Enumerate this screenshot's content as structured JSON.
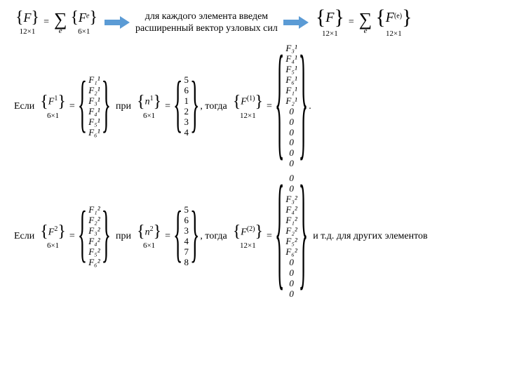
{
  "background_color": "#ffffff",
  "text_color": "#000000",
  "arrow_color": "#5b9bd5",
  "top": {
    "lhs_label": "{F}",
    "lhs_dim": "12×1",
    "eq": "=",
    "sigma_sub": "e",
    "rhs_label": "{F e}",
    "rhs_sup": "e",
    "rhs_dim": "6×1",
    "caption_line1": "для каждого элемента введем",
    "caption_line2": "расширенный вектор узловых сил",
    "far_lhs_label": "{F}",
    "far_lhs_dim": "12×1",
    "far_rhs_sup": "(e)",
    "far_rhs_dim": "12×1"
  },
  "ex1": {
    "prefix": "Если",
    "F_label": "F 1",
    "F_dim": "6×1",
    "F_entries": [
      "F₁¹",
      "F₂¹",
      "F₃¹",
      "F₄¹",
      "F₅¹",
      "F₆¹"
    ],
    "mid": "при",
    "n_label": "n¹",
    "n_dim": "6×1",
    "n_entries": [
      "5",
      "6",
      "1",
      "2",
      "3",
      "4"
    ],
    "then": ", тогда",
    "R_label": "F (1)",
    "R_dim": "12×1",
    "R_entries": [
      "F₃¹",
      "F₄¹",
      "F₅¹",
      "F₆¹",
      "F₁¹",
      "F₂¹",
      "0",
      "0",
      "0",
      "0",
      "0",
      "0"
    ],
    "tail": "."
  },
  "ex2": {
    "prefix": "Если",
    "F_label": "F 2",
    "F_dim": "6×1",
    "F_entries": [
      "F₁²",
      "F₂²",
      "F₃²",
      "F₄²",
      "F₅²",
      "F₆²"
    ],
    "mid": "при",
    "n_label": "n²",
    "n_dim": "6×1",
    "n_entries": [
      "5",
      "6",
      "3",
      "4",
      "7",
      "8"
    ],
    "then": ", тогда",
    "R_label": "F (2)",
    "R_dim": "12×1",
    "R_entries": [
      "0",
      "0",
      "F₃²",
      "F₄²",
      "F₁²",
      "F₂²",
      "F₅²",
      "F₆²",
      "0",
      "0",
      "0",
      "0"
    ],
    "tail": "и т.д. для других элементов"
  },
  "style": {
    "font_family": "Times New Roman",
    "base_fontsize_pt": 14,
    "small_fontsize_pt": 11,
    "brace6_scaleY": 3.2,
    "brace12_scaleY": 6.5
  }
}
